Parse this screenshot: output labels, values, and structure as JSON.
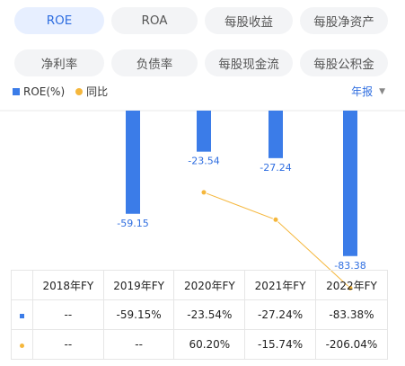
{
  "tabs_row1": [
    {
      "label": "ROE",
      "active": true
    },
    {
      "label": "ROA",
      "active": false
    },
    {
      "label": "每股收益",
      "active": false
    },
    {
      "label": "每股净资产",
      "active": false
    }
  ],
  "tabs_row2": [
    {
      "label": "净利率",
      "active": false
    },
    {
      "label": "负债率",
      "active": false
    },
    {
      "label": "每股现金流",
      "active": false
    },
    {
      "label": "每股公积金",
      "active": false
    }
  ],
  "legend": {
    "series1": "ROE(%)",
    "series2": "同比"
  },
  "period_selector": {
    "label": "年报",
    "caret": "▼"
  },
  "colors": {
    "bar": "#3b7ce8",
    "line": "#f5b73c",
    "label": "#2f6ee0",
    "positive": "#e53935",
    "negative": "#1f9d55"
  },
  "chart_data": {
    "type": "bar",
    "categories": [
      "2018年FY",
      "2019年FY",
      "2020年FY",
      "2021年FY",
      "2022年FY"
    ],
    "series": [
      {
        "name": "ROE(%)",
        "type": "bar",
        "values": [
          null,
          -59.15,
          -23.54,
          -27.24,
          -83.38
        ]
      },
      {
        "name": "同比",
        "type": "line",
        "values": [
          null,
          null,
          60.2,
          -15.74,
          -206.04
        ]
      }
    ],
    "bar_labels": [
      "",
      "-59.15",
      "-23.54",
      "-27.24",
      "-83.38"
    ]
  },
  "table": {
    "headers": [
      "",
      "2018年FY",
      "2019年FY",
      "2020年FY",
      "2021年FY",
      "2022年FY"
    ],
    "rows": [
      {
        "marker": "bar",
        "cells": [
          "--",
          "-59.15%",
          "-23.54%",
          "-27.24%",
          "-83.38%"
        ],
        "tones": [
          "",
          "",
          "",
          "",
          ""
        ]
      },
      {
        "marker": "dot",
        "cells": [
          "--",
          "--",
          "60.20%",
          "-15.74%",
          "-206.04%"
        ],
        "tones": [
          "",
          "",
          "red",
          "green",
          "green"
        ]
      }
    ]
  }
}
